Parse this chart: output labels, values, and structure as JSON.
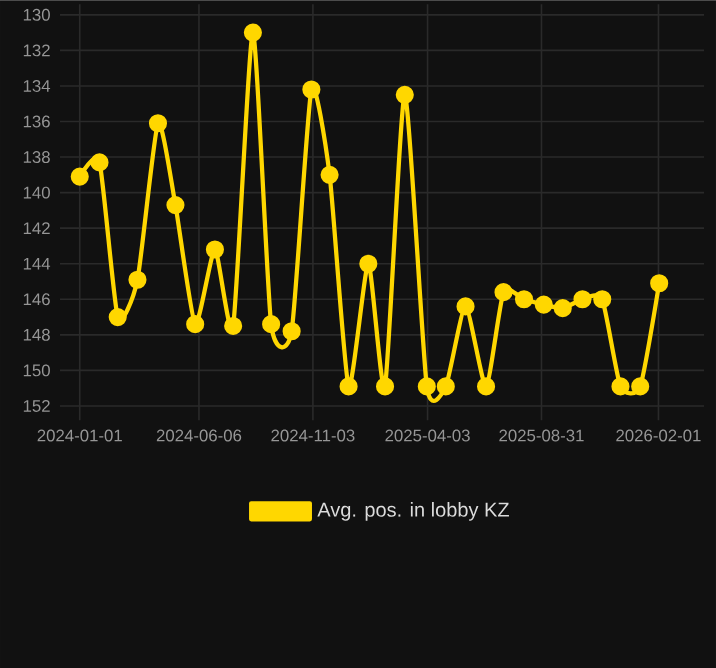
{
  "chart_data": {
    "type": "line",
    "x": [
      "2024-01-01",
      "2024-01-27",
      "2024-02-20",
      "2024-03-17",
      "2024-04-13",
      "2024-05-06",
      "2024-06-01",
      "2024-06-27",
      "2024-07-21",
      "2024-08-16",
      "2024-09-09",
      "2024-10-06",
      "2024-11-01",
      "2024-11-25",
      "2024-12-20",
      "2025-01-15",
      "2025-02-06",
      "2025-03-04",
      "2025-04-02",
      "2025-04-27",
      "2025-05-23",
      "2025-06-19",
      "2025-07-12",
      "2025-08-08",
      "2025-09-03",
      "2025-09-28",
      "2025-10-24",
      "2025-11-19",
      "2025-12-13",
      "2026-01-08",
      "2026-02-02"
    ],
    "series": [
      {
        "name": "Avg. pos. in lobby KZ",
        "color": "#ffd700",
        "values": [
          139.1,
          138.3,
          147.0,
          144.9,
          136.1,
          140.7,
          147.4,
          143.2,
          147.5,
          131.0,
          147.4,
          147.8,
          134.2,
          139.0,
          150.9,
          144.0,
          150.9,
          134.5,
          150.9,
          150.9,
          146.4,
          150.9,
          145.6,
          146.0,
          146.3,
          146.5,
          146.0,
          146.0,
          150.9,
          150.9,
          145.1
        ]
      }
    ],
    "xlim": [
      "2023-12-06",
      "2026-04-02"
    ],
    "xticks": [
      "2024-01-01",
      "2024-06-06",
      "2024-11-03",
      "2025-04-03",
      "2025-08-31",
      "2026-02-01"
    ],
    "ylim": [
      152.8,
      129.4
    ],
    "yticks": [
      130,
      132,
      134,
      136,
      138,
      140,
      142,
      144,
      146,
      148,
      150,
      152
    ],
    "grid": true,
    "legend": "bottom",
    "marker": "circle",
    "line_style": "solid"
  }
}
